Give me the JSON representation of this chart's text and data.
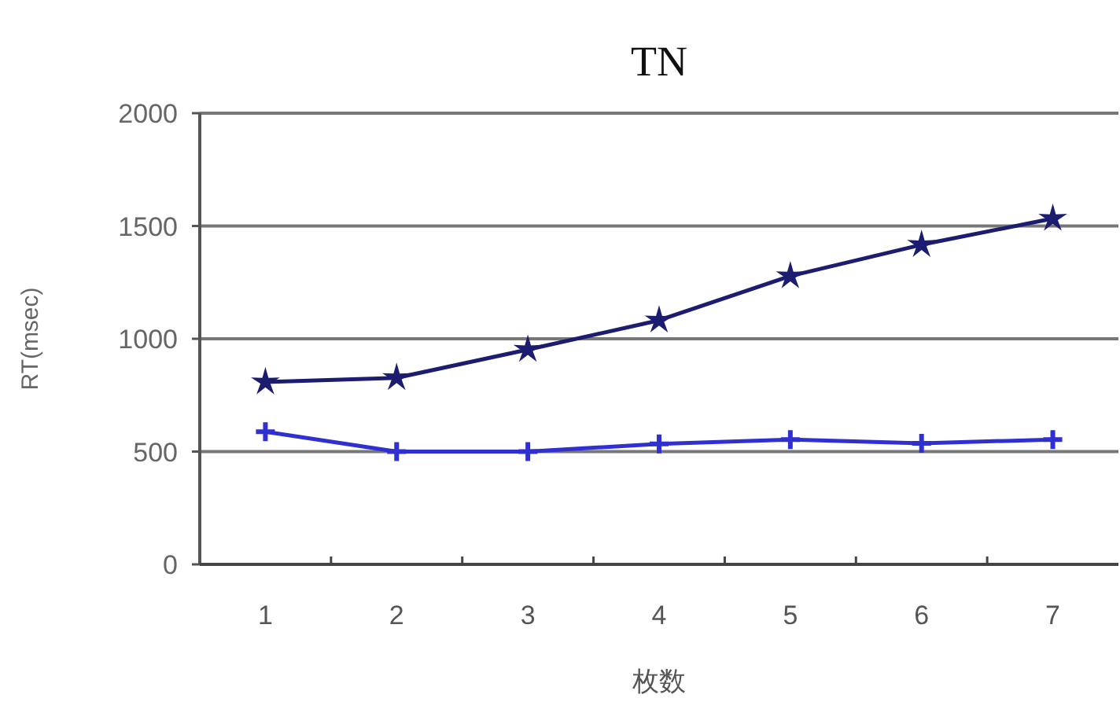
{
  "chart_data": {
    "type": "line",
    "title": "TN",
    "xlabel": "枚数",
    "ylabel": "RT(msec)",
    "categories": [
      "1",
      "2",
      "3",
      "4",
      "5",
      "6",
      "7"
    ],
    "series": [
      {
        "color": "#1c1c70",
        "marker": "star",
        "values": [
          808,
          827,
          952,
          1082,
          1278,
          1417,
          1533
        ]
      },
      {
        "color": "#3030d0",
        "marker": "cross",
        "values": [
          588,
          500,
          500,
          534,
          553,
          537,
          553
        ]
      }
    ],
    "ylim": [
      0,
      2000
    ],
    "yticks": [
      0,
      500,
      1000,
      1500,
      2000
    ],
    "grid": "y"
  }
}
